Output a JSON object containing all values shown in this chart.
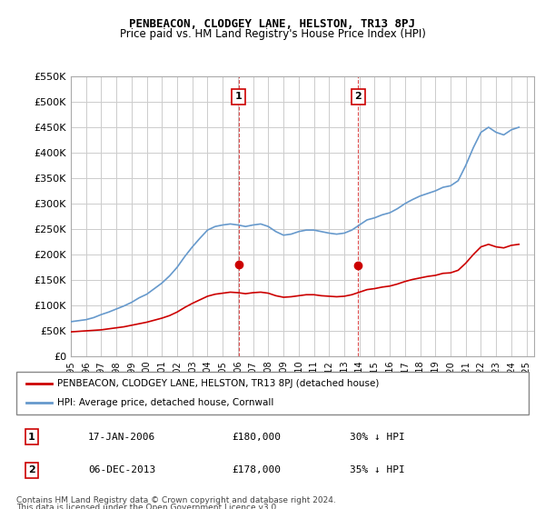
{
  "title": "PENBEACON, CLODGEY LANE, HELSTON, TR13 8PJ",
  "subtitle": "Price paid vs. HM Land Registry's House Price Index (HPI)",
  "ylabel_ticks": [
    "£0",
    "£50K",
    "£100K",
    "£150K",
    "£200K",
    "£250K",
    "£300K",
    "£350K",
    "£400K",
    "£450K",
    "£500K",
    "£550K"
  ],
  "ylim": [
    0,
    550000
  ],
  "xlim_start": 1995.0,
  "xlim_end": 2025.5,
  "red_line_color": "#cc0000",
  "blue_line_color": "#6699cc",
  "dashed_line_color": "#cc0000",
  "marker_color": "#cc0000",
  "grid_color": "#cccccc",
  "background_color": "#ffffff",
  "sale1": {
    "year": 2006.04,
    "price": 180000,
    "label": "1",
    "date": "17-JAN-2006",
    "pct": "30% ↓ HPI"
  },
  "sale2": {
    "year": 2013.92,
    "price": 178000,
    "label": "2",
    "date": "06-DEC-2013",
    "pct": "35% ↓ HPI"
  },
  "legend_label_red": "PENBEACON, CLODGEY LANE, HELSTON, TR13 8PJ (detached house)",
  "legend_label_blue": "HPI: Average price, detached house, Cornwall",
  "footer1": "Contains HM Land Registry data © Crown copyright and database right 2024.",
  "footer2": "This data is licensed under the Open Government Licence v3.0.",
  "hpi_years": [
    1995.0,
    1995.5,
    1996.0,
    1996.5,
    1997.0,
    1997.5,
    1998.0,
    1998.5,
    1999.0,
    1999.5,
    2000.0,
    2000.5,
    2001.0,
    2001.5,
    2002.0,
    2002.5,
    2003.0,
    2003.5,
    2004.0,
    2004.5,
    2005.0,
    2005.5,
    2006.0,
    2006.5,
    2007.0,
    2007.5,
    2008.0,
    2008.5,
    2009.0,
    2009.5,
    2010.0,
    2010.5,
    2011.0,
    2011.5,
    2012.0,
    2012.5,
    2013.0,
    2013.5,
    2014.0,
    2014.5,
    2015.0,
    2015.5,
    2016.0,
    2016.5,
    2017.0,
    2017.5,
    2018.0,
    2018.5,
    2019.0,
    2019.5,
    2020.0,
    2020.5,
    2021.0,
    2021.5,
    2022.0,
    2022.5,
    2023.0,
    2023.5,
    2024.0,
    2024.5
  ],
  "hpi_values": [
    68000,
    70000,
    72000,
    76000,
    82000,
    87000,
    93000,
    99000,
    106000,
    115000,
    122000,
    133000,
    144000,
    158000,
    175000,
    196000,
    215000,
    232000,
    248000,
    255000,
    258000,
    260000,
    258000,
    255000,
    258000,
    260000,
    255000,
    245000,
    238000,
    240000,
    245000,
    248000,
    248000,
    245000,
    242000,
    240000,
    242000,
    248000,
    258000,
    268000,
    272000,
    278000,
    282000,
    290000,
    300000,
    308000,
    315000,
    320000,
    325000,
    332000,
    335000,
    345000,
    375000,
    410000,
    440000,
    450000,
    440000,
    435000,
    445000,
    450000
  ],
  "red_years": [
    1995.0,
    1995.5,
    1996.0,
    1996.5,
    1997.0,
    1997.5,
    1998.0,
    1998.5,
    1999.0,
    1999.5,
    2000.0,
    2000.5,
    2001.0,
    2001.5,
    2002.0,
    2002.5,
    2003.0,
    2003.5,
    2004.0,
    2004.5,
    2005.0,
    2005.5,
    2006.0,
    2006.5,
    2007.0,
    2007.5,
    2008.0,
    2008.5,
    2009.0,
    2009.5,
    2010.0,
    2010.5,
    2011.0,
    2011.5,
    2012.0,
    2012.5,
    2013.0,
    2013.5,
    2014.0,
    2014.5,
    2015.0,
    2015.5,
    2016.0,
    2016.5,
    2017.0,
    2017.5,
    2018.0,
    2018.5,
    2019.0,
    2019.5,
    2020.0,
    2020.5,
    2021.0,
    2021.5,
    2022.0,
    2022.5,
    2023.0,
    2023.5,
    2024.0,
    2024.5
  ],
  "red_values": [
    48000,
    49000,
    50000,
    51000,
    52000,
    54000,
    56000,
    58000,
    61000,
    64000,
    67000,
    71000,
    75000,
    80000,
    87000,
    96000,
    104000,
    111000,
    118000,
    122000,
    124000,
    126000,
    125000,
    123000,
    125000,
    126000,
    124000,
    119000,
    116000,
    117000,
    119000,
    121000,
    121000,
    119000,
    118000,
    117000,
    118000,
    121000,
    126000,
    131000,
    133000,
    136000,
    138000,
    142000,
    147000,
    151000,
    154000,
    157000,
    159000,
    163000,
    164000,
    169000,
    183000,
    200000,
    215000,
    220000,
    215000,
    213000,
    218000,
    220000
  ]
}
